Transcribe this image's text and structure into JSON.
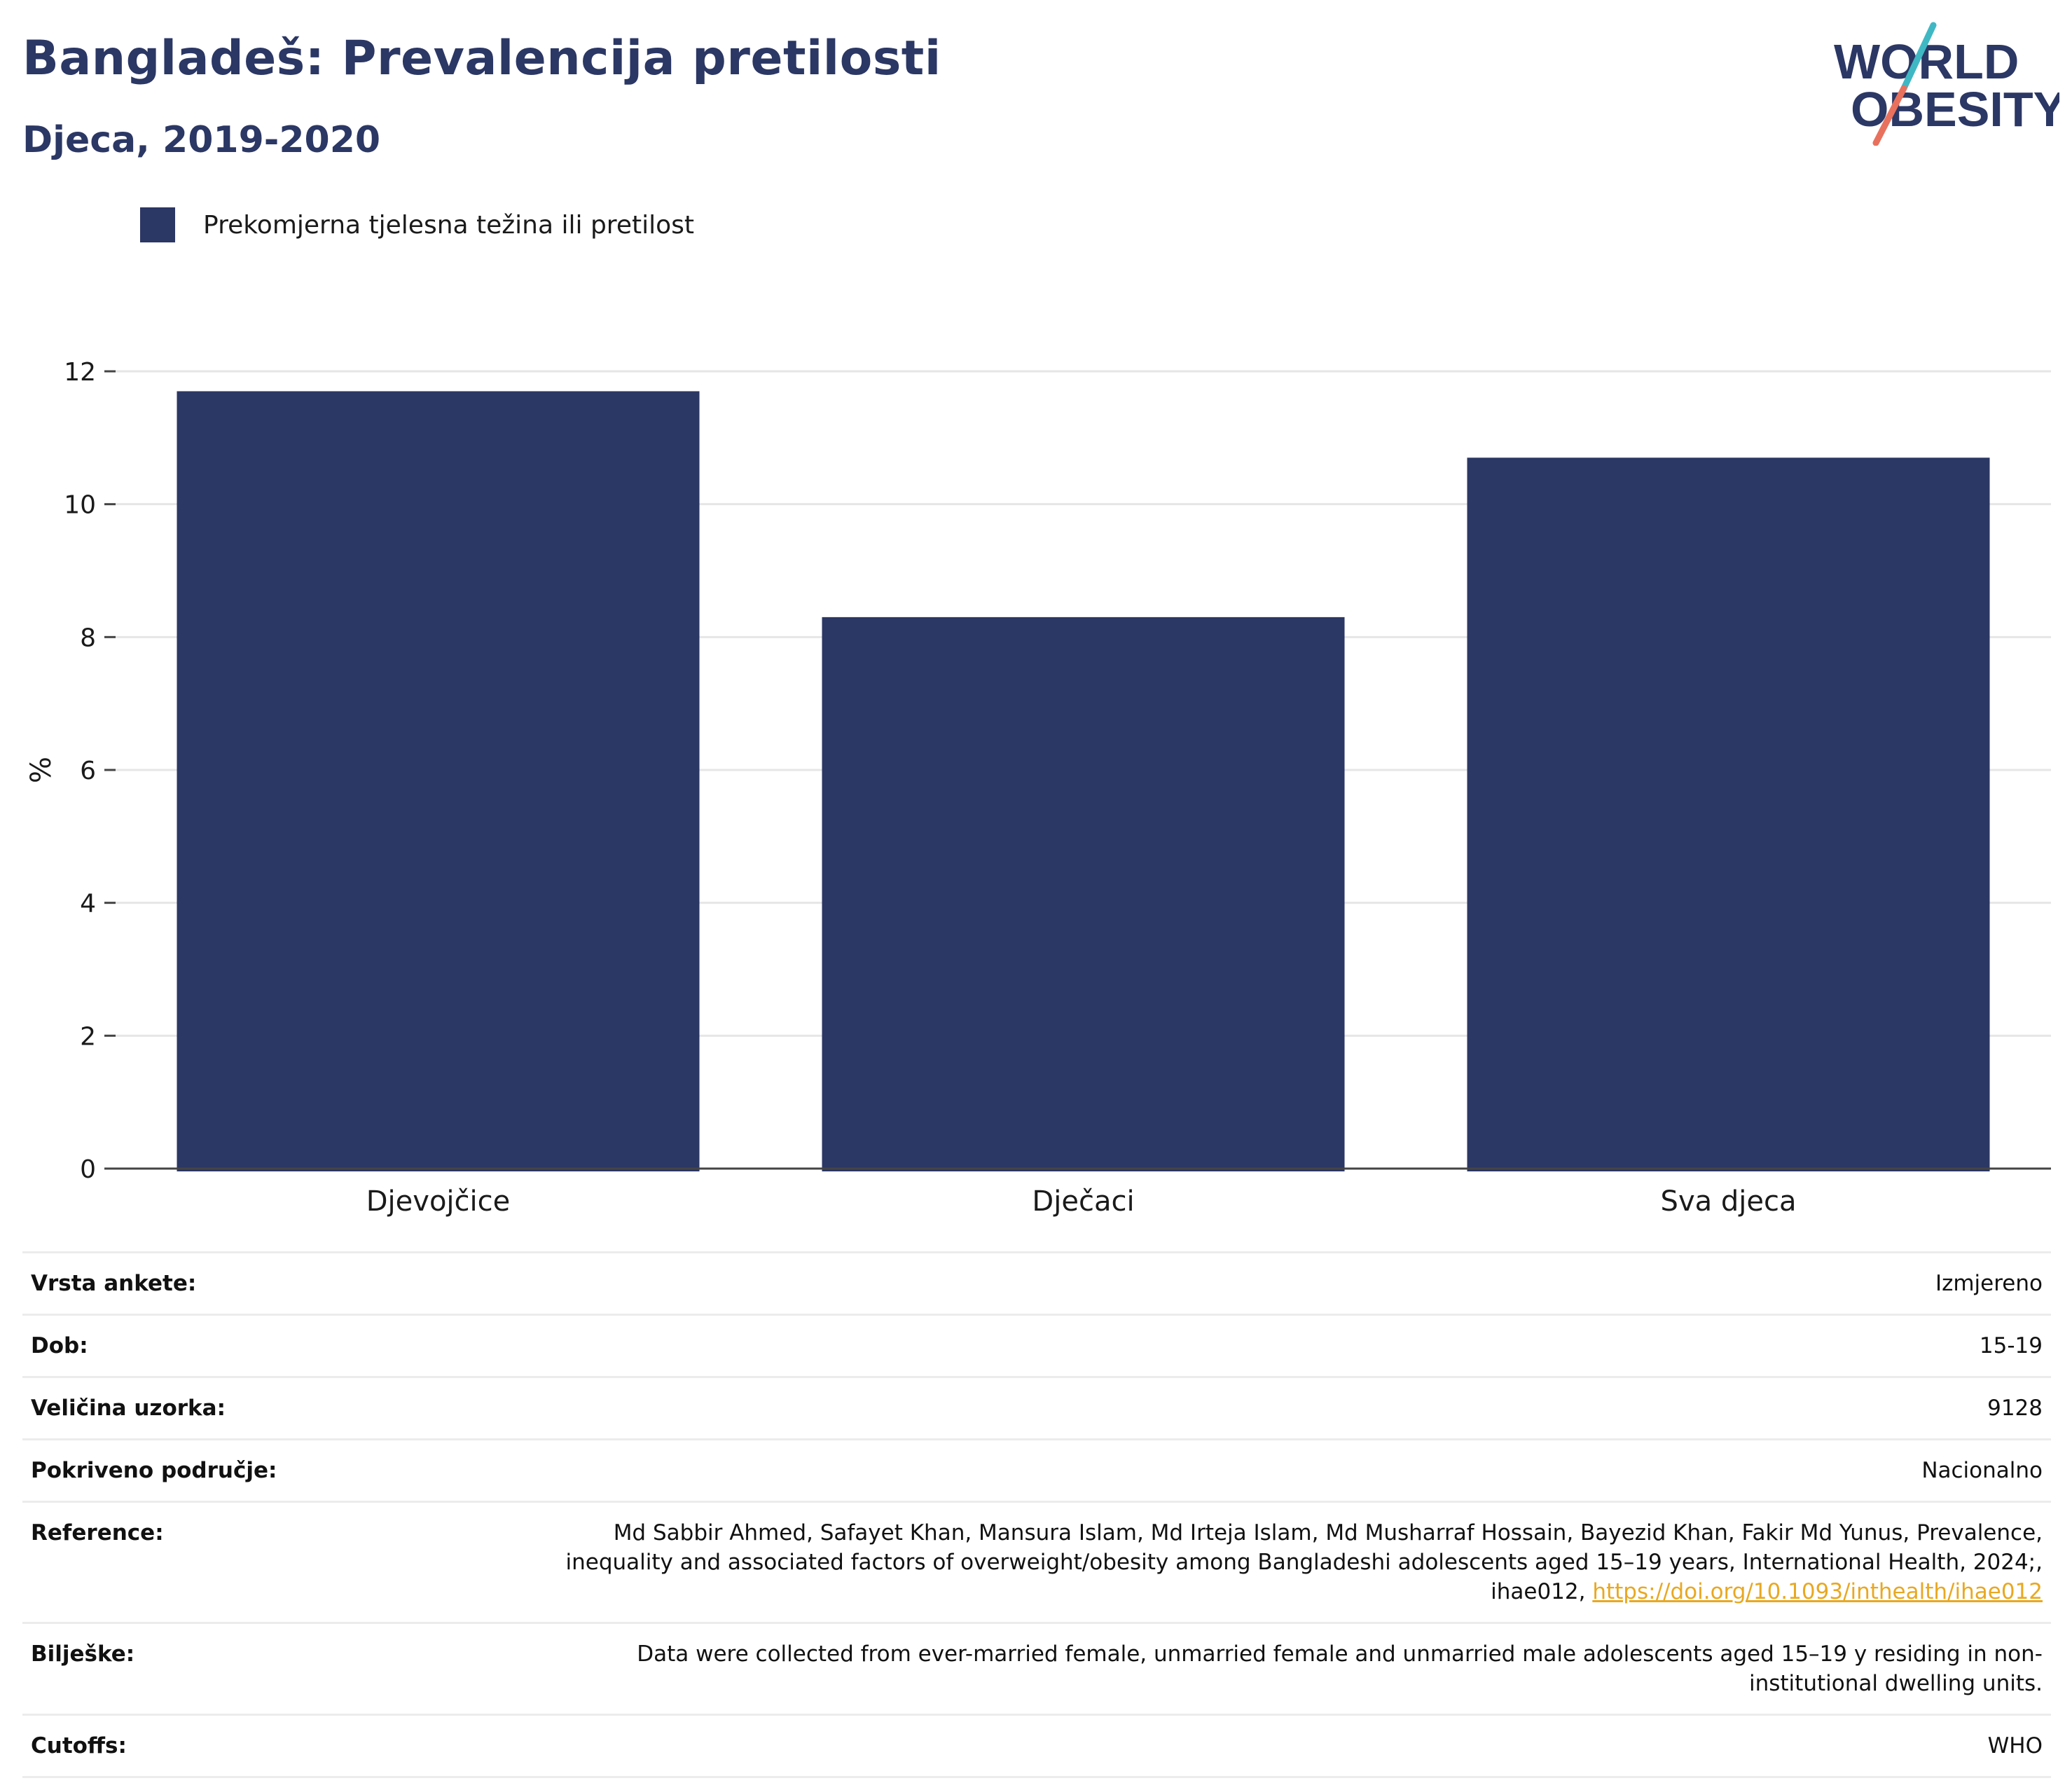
{
  "header": {
    "title": "Bangladeš: Prevalencija pretilosti",
    "subtitle": "Djeca, 2019-2020"
  },
  "logo": {
    "line1": "WORLD",
    "line2": "OBESITY"
  },
  "colors": {
    "bar": "#2b3764",
    "title": "#2b3764",
    "accent_teal": "#3fb8c4",
    "accent_coral": "#e8715e",
    "link": "#e8a823"
  },
  "chart_data": {
    "type": "bar",
    "categories": [
      "Djevojčice",
      "Dječaci",
      "Sva djeca"
    ],
    "series": [
      {
        "name": "Prekomjerna tjelesna težina ili pretilost",
        "values": [
          11.7,
          8.3,
          10.7
        ]
      }
    ],
    "ylabel": "%",
    "ylim": [
      0,
      12
    ],
    "yticks": [
      0,
      2,
      4,
      6,
      8,
      10,
      12
    ],
    "grid": true,
    "legend": "top-left"
  },
  "info": {
    "rows": [
      {
        "label": "Vrsta ankete:",
        "value": "Izmjereno"
      },
      {
        "label": "Dob:",
        "value": "15-19"
      },
      {
        "label": "Veličina uzorka:",
        "value": "9128"
      },
      {
        "label": "Pokriveno područje:",
        "value": "Nacionalno"
      }
    ],
    "reference": {
      "label": "Reference:",
      "line1": "Md Sabbir Ahmed, Safayet Khan, Mansura Islam, Md Irteja Islam, Md Musharraf Hossain, Bayezid Khan, Fakir Md Yunus, Prevalence,",
      "line2": "inequality and associated factors of overweight/obesity among Bangladeshi adolescents aged 15–19 years, International Health, 2024;,",
      "line3_prefix": "ihae012, ",
      "link": "https://doi.org/10.1093/inthealth/ihae012"
    },
    "notes": {
      "label": "Bilješke:",
      "line1": "Data were collected from ever-married female, unmarried female and unmarried male adolescents aged 15–19 y residing in non-",
      "line2": "institutional dwelling units."
    },
    "cutoffs": {
      "label": "Cutoffs:",
      "value": "WHO"
    }
  }
}
